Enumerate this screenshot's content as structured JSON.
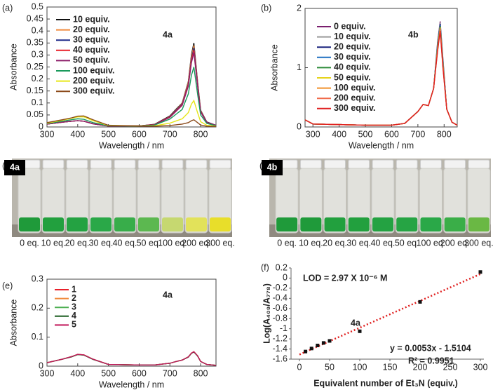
{
  "chart_data": [
    {
      "type": "line",
      "panel": "(a)",
      "annotation": "4a",
      "xlabel": "Wavelength / nm",
      "ylabel": "Absorbance",
      "legend": "upper left",
      "x": [
        300,
        350,
        380,
        400,
        420,
        450,
        500,
        600,
        650,
        700,
        720,
        740,
        760,
        770,
        778,
        790,
        800,
        820,
        850
      ],
      "xlim": [
        300,
        850
      ],
      "xticks": [
        300,
        400,
        500,
        600,
        700,
        800
      ],
      "ylim": [
        0,
        0.5
      ],
      "yticks": [
        0,
        0.05,
        0.1,
        0.15,
        0.2,
        0.25,
        0.3,
        0.35,
        0.4,
        0.45,
        0.5
      ],
      "series": [
        {
          "name": "10 equiv.",
          "color": "#111111",
          "values": [
            0.012,
            0.02,
            0.024,
            0.026,
            0.024,
            0.013,
            0.004,
            0.004,
            0.011,
            0.046,
            0.074,
            0.1,
            0.19,
            0.3,
            0.35,
            0.19,
            0.07,
            0.021,
            0.007
          ]
        },
        {
          "name": "20 equiv.",
          "color": "#f08a3c",
          "values": [
            0.012,
            0.02,
            0.024,
            0.026,
            0.024,
            0.013,
            0.004,
            0.004,
            0.01,
            0.044,
            0.071,
            0.099,
            0.187,
            0.292,
            0.34,
            0.187,
            0.068,
            0.02,
            0.007
          ]
        },
        {
          "name": "30 equiv.",
          "color": "#1f2a8a",
          "values": [
            0.012,
            0.02,
            0.024,
            0.026,
            0.024,
            0.013,
            0.004,
            0.004,
            0.01,
            0.043,
            0.069,
            0.096,
            0.18,
            0.28,
            0.33,
            0.18,
            0.066,
            0.02,
            0.007
          ]
        },
        {
          "name": "40 equiv.",
          "color": "#e8202a",
          "values": [
            0.012,
            0.02,
            0.024,
            0.026,
            0.024,
            0.013,
            0.004,
            0.004,
            0.01,
            0.042,
            0.067,
            0.093,
            0.176,
            0.275,
            0.32,
            0.176,
            0.064,
            0.019,
            0.006
          ]
        },
        {
          "name": "50 equiv.",
          "color": "#8e1f6a",
          "values": [
            0.012,
            0.02,
            0.024,
            0.026,
            0.024,
            0.013,
            0.004,
            0.004,
            0.009,
            0.04,
            0.065,
            0.09,
            0.17,
            0.267,
            0.31,
            0.17,
            0.062,
            0.019,
            0.006
          ]
        },
        {
          "name": "100 equiv.",
          "color": "#1a9a5c",
          "values": [
            0.014,
            0.024,
            0.03,
            0.034,
            0.032,
            0.018,
            0.005,
            0.004,
            0.008,
            0.033,
            0.053,
            0.073,
            0.138,
            0.215,
            0.25,
            0.138,
            0.05,
            0.015,
            0.005
          ]
        },
        {
          "name": "200 equiv.",
          "color": "#e6e61a",
          "values": [
            0.016,
            0.028,
            0.036,
            0.042,
            0.042,
            0.026,
            0.006,
            0.004,
            0.005,
            0.016,
            0.025,
            0.034,
            0.06,
            0.095,
            0.11,
            0.06,
            0.022,
            0.007,
            0.003
          ]
        },
        {
          "name": "300 equiv.",
          "color": "#8b4a1a",
          "values": [
            0.018,
            0.03,
            0.038,
            0.045,
            0.046,
            0.03,
            0.007,
            0.004,
            0.003,
            0.006,
            0.009,
            0.012,
            0.018,
            0.026,
            0.03,
            0.018,
            0.008,
            0.003,
            0.002
          ]
        }
      ]
    },
    {
      "type": "line",
      "panel": "(b)",
      "annotation": "4b",
      "xlabel": "Wavelength / nm",
      "ylabel": "Absorbance",
      "legend": "upper left",
      "x": [
        270,
        300,
        400,
        500,
        600,
        650,
        700,
        720,
        740,
        760,
        775,
        785,
        795,
        810,
        830,
        850
      ],
      "xlim": [
        270,
        850
      ],
      "xticks": [
        300,
        400,
        500,
        600,
        700,
        800
      ],
      "ylim": [
        0,
        2
      ],
      "yticks": [
        0,
        1,
        2
      ],
      "series": [
        {
          "name": "0 equiv.",
          "color": "#7a1f6e",
          "values": [
            0.12,
            0.05,
            0.04,
            0.03,
            0.03,
            0.06,
            0.26,
            0.38,
            0.36,
            0.65,
            1.43,
            1.78,
            1.18,
            0.3,
            0.08,
            0.03
          ]
        },
        {
          "name": "10 equiv.",
          "color": "#9a9a9a",
          "values": [
            0.12,
            0.05,
            0.04,
            0.03,
            0.03,
            0.06,
            0.26,
            0.38,
            0.36,
            0.65,
            1.41,
            1.76,
            1.16,
            0.3,
            0.08,
            0.03
          ]
        },
        {
          "name": "20 equiv.",
          "color": "#1a237e",
          "values": [
            0.12,
            0.05,
            0.04,
            0.03,
            0.03,
            0.06,
            0.26,
            0.38,
            0.36,
            0.65,
            1.39,
            1.74,
            1.14,
            0.3,
            0.08,
            0.03
          ]
        },
        {
          "name": "30 equiv.",
          "color": "#1e6fc0",
          "values": [
            0.12,
            0.05,
            0.04,
            0.03,
            0.03,
            0.06,
            0.26,
            0.38,
            0.36,
            0.65,
            1.37,
            1.72,
            1.12,
            0.3,
            0.08,
            0.03
          ]
        },
        {
          "name": "40 equiv.",
          "color": "#2e8b3a",
          "values": [
            0.12,
            0.05,
            0.04,
            0.03,
            0.03,
            0.06,
            0.26,
            0.38,
            0.36,
            0.65,
            1.35,
            1.7,
            1.1,
            0.3,
            0.08,
            0.03
          ]
        },
        {
          "name": "50 equiv.",
          "color": "#e6d21a",
          "values": [
            0.12,
            0.05,
            0.04,
            0.03,
            0.03,
            0.06,
            0.26,
            0.38,
            0.36,
            0.65,
            1.33,
            1.68,
            1.08,
            0.3,
            0.08,
            0.03
          ]
        },
        {
          "name": "100 equiv.",
          "color": "#f0902a",
          "values": [
            0.12,
            0.05,
            0.04,
            0.03,
            0.03,
            0.06,
            0.26,
            0.38,
            0.36,
            0.65,
            1.31,
            1.66,
            1.06,
            0.3,
            0.08,
            0.03
          ]
        },
        {
          "name": "200 equiv.",
          "color": "#f06a4a",
          "values": [
            0.12,
            0.05,
            0.04,
            0.03,
            0.03,
            0.06,
            0.26,
            0.38,
            0.36,
            0.65,
            1.29,
            1.64,
            1.04,
            0.3,
            0.08,
            0.03
          ]
        },
        {
          "name": "300 equiv.",
          "color": "#e02020",
          "values": [
            0.12,
            0.05,
            0.04,
            0.03,
            0.03,
            0.06,
            0.26,
            0.38,
            0.36,
            0.65,
            1.27,
            1.62,
            1.02,
            0.3,
            0.08,
            0.03
          ]
        }
      ]
    },
    {
      "type": "line",
      "panel": "(e)",
      "annotation": "4a",
      "xlabel": "Wavelength / nm",
      "ylabel": "Absorbance",
      "legend": "upper left",
      "x": [
        300,
        350,
        380,
        400,
        420,
        450,
        500,
        600,
        650,
        700,
        720,
        740,
        760,
        770,
        778,
        790,
        800,
        820,
        850
      ],
      "xlim": [
        300,
        850
      ],
      "xticks": [
        300,
        400,
        500,
        600,
        700,
        800
      ],
      "ylim": [
        0,
        0.3
      ],
      "yticks": [
        0,
        0.1,
        0.2,
        0.3
      ],
      "series": [
        {
          "name": "1",
          "color": "#e8202a",
          "values": [
            0.012,
            0.024,
            0.033,
            0.04,
            0.039,
            0.024,
            0.006,
            0.004,
            0.004,
            0.01,
            0.016,
            0.021,
            0.032,
            0.045,
            0.05,
            0.036,
            0.016,
            0.006,
            0.003
          ]
        },
        {
          "name": "2",
          "color": "#f08a3c",
          "values": [
            0.012,
            0.024,
            0.033,
            0.041,
            0.039,
            0.024,
            0.006,
            0.004,
            0.004,
            0.01,
            0.016,
            0.021,
            0.032,
            0.045,
            0.05,
            0.036,
            0.016,
            0.006,
            0.003
          ]
        },
        {
          "name": "3",
          "color": "#4caf50",
          "values": [
            0.012,
            0.024,
            0.033,
            0.04,
            0.038,
            0.024,
            0.006,
            0.004,
            0.004,
            0.01,
            0.016,
            0.021,
            0.032,
            0.044,
            0.049,
            0.035,
            0.016,
            0.006,
            0.003
          ]
        },
        {
          "name": "4",
          "color": "#1b5e20",
          "values": [
            0.012,
            0.024,
            0.032,
            0.04,
            0.038,
            0.023,
            0.006,
            0.004,
            0.004,
            0.01,
            0.016,
            0.021,
            0.031,
            0.044,
            0.049,
            0.035,
            0.016,
            0.006,
            0.003
          ]
        },
        {
          "name": "5",
          "color": "#c2185b",
          "values": [
            0.012,
            0.024,
            0.033,
            0.041,
            0.039,
            0.024,
            0.006,
            0.004,
            0.004,
            0.01,
            0.016,
            0.021,
            0.032,
            0.045,
            0.05,
            0.036,
            0.016,
            0.006,
            0.003
          ]
        }
      ]
    },
    {
      "type": "scatter",
      "panel": "(f)",
      "annotation": "4a",
      "lod": "LOD = 2.97 X 10⁻⁶ M",
      "equation": "y = 0.0053x - 1.5104",
      "r2": "R² = 0.9951",
      "xlabel": "Equivalent number of Et₃N (equiv.)",
      "ylabel": "Log(A₄₀₉/A₇₇₈)",
      "x": [
        10,
        20,
        30,
        40,
        50,
        100,
        200,
        300
      ],
      "values": [
        -1.45,
        -1.39,
        -1.33,
        -1.28,
        -1.24,
        -1.05,
        -0.47,
        0.12
      ],
      "color": "#111111",
      "trendline": {
        "x": [
          0,
          300
        ],
        "values": [
          -1.51,
          0.08
        ],
        "color": "#e02020"
      },
      "xlim": [
        0,
        300
      ],
      "xticks": [
        0,
        50,
        100,
        150,
        200,
        250,
        300
      ],
      "ylim": [
        -1.6,
        0.2
      ],
      "yticks": [
        -1.6,
        -1.4,
        -1.2,
        -1,
        -0.8,
        -0.6,
        -0.4,
        -0.2,
        0,
        0.2
      ]
    }
  ],
  "photos": [
    {
      "panel": "(c)",
      "tag": "4a",
      "labels": [
        "0 eq.",
        "10 eq.",
        "20 eq.",
        "30 eq.",
        "40 eq.",
        "50 eq.",
        "100 eq.",
        "200 eq.",
        "300 eq."
      ],
      "liquid_colors": [
        "#1f9a3a",
        "#22a03e",
        "#24a242",
        "#2aa848",
        "#38ad4a",
        "#5cb850",
        "#c6d870",
        "#e2e25a",
        "#e8de2a"
      ]
    },
    {
      "panel": "(d)",
      "tag": "4b",
      "labels": [
        "0 eq.",
        "10 eq.",
        "20 eq.",
        "30 eq.",
        "40 eq.",
        "50 eq.",
        "100 eq.",
        "200 eq.",
        "300 eq."
      ],
      "liquid_colors": [
        "#1f9a3a",
        "#1f9a3a",
        "#22a03e",
        "#22a03e",
        "#24a242",
        "#26a444",
        "#2aa848",
        "#3aae48",
        "#6ab844"
      ]
    }
  ]
}
